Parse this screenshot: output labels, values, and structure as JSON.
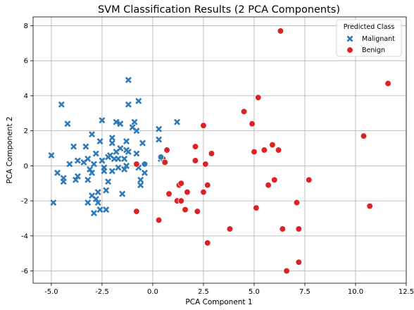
{
  "chart_data": {
    "type": "scatter",
    "title": "SVM Classification Results (2 PCA Components)",
    "xlabel": "PCA Component 1",
    "ylabel": "PCA Component 2",
    "xlim": [
      -5.9,
      12.5
    ],
    "ylim": [
      -6.7,
      8.5
    ],
    "xticks": [
      -5.0,
      -2.5,
      0.0,
      2.5,
      5.0,
      7.5,
      10.0,
      12.5
    ],
    "yticks": [
      -6,
      -4,
      -2,
      0,
      2,
      4,
      6,
      8
    ],
    "xtick_labels": [
      "-5.0",
      "-2.5",
      "0.0",
      "2.5",
      "5.0",
      "7.5",
      "10.0",
      "12.5"
    ],
    "ytick_labels": [
      "-6",
      "-4",
      "-2",
      "0",
      "2",
      "4",
      "6",
      "8"
    ],
    "grid": true,
    "legend": {
      "title": "Predicted Class",
      "placement": "top-right"
    },
    "series": [
      {
        "name": "Malignant",
        "marker": "x",
        "color": "#2f7ab8",
        "points": [
          [
            -5.0,
            0.6
          ],
          [
            -4.9,
            -2.1
          ],
          [
            -4.7,
            -0.4
          ],
          [
            -4.5,
            3.5
          ],
          [
            -4.4,
            -0.7
          ],
          [
            -4.4,
            -0.9
          ],
          [
            -4.2,
            2.4
          ],
          [
            -4.1,
            0.1
          ],
          [
            -3.9,
            1.1
          ],
          [
            -3.8,
            -0.8
          ],
          [
            -3.7,
            0.3
          ],
          [
            -3.7,
            -0.6
          ],
          [
            -3.4,
            0.2
          ],
          [
            -3.3,
            1.1
          ],
          [
            -3.2,
            0.4
          ],
          [
            -3.2,
            -0.8
          ],
          [
            -3.2,
            -2.1
          ],
          [
            -3.1,
            -0.2
          ],
          [
            -3.0,
            1.8
          ],
          [
            -3.0,
            -0.4
          ],
          [
            -3.0,
            -1.7
          ],
          [
            -2.9,
            -2.7
          ],
          [
            -2.9,
            0.1
          ],
          [
            -2.8,
            0.7
          ],
          [
            -2.8,
            -1.9
          ],
          [
            -2.7,
            -2.1
          ],
          [
            -2.7,
            -1.5
          ],
          [
            -2.6,
            1.4
          ],
          [
            -2.6,
            -2.5
          ],
          [
            -2.5,
            2.6
          ],
          [
            -2.5,
            0.3
          ],
          [
            -2.4,
            -0.1
          ],
          [
            -2.4,
            -0.3
          ],
          [
            -2.3,
            -1.4
          ],
          [
            -2.3,
            -2.5
          ],
          [
            -2.2,
            -0.9
          ],
          [
            -2.2,
            0.5
          ],
          [
            -2.1,
            0.6
          ],
          [
            -2.0,
            1.6
          ],
          [
            -2.0,
            1.3
          ],
          [
            -2.0,
            -0.3
          ],
          [
            -1.9,
            0.4
          ],
          [
            -1.8,
            2.5
          ],
          [
            -1.8,
            0.8
          ],
          [
            -1.7,
            0.4
          ],
          [
            -1.7,
            -0.1
          ],
          [
            -1.6,
            2.4
          ],
          [
            -1.6,
            1.0
          ],
          [
            -1.5,
            -1.6
          ],
          [
            -1.4,
            -0.2
          ],
          [
            -1.4,
            0.4
          ],
          [
            -1.3,
            1.4
          ],
          [
            -1.3,
            0.9
          ],
          [
            -1.3,
            0.0
          ],
          [
            -1.2,
            0.8
          ],
          [
            -1.2,
            3.5
          ],
          [
            -1.2,
            4.9
          ],
          [
            -1.0,
            2.2
          ],
          [
            -0.9,
            2.5
          ],
          [
            -0.8,
            2.0
          ],
          [
            -0.8,
            0.7
          ],
          [
            -0.7,
            3.7
          ],
          [
            -0.7,
            -0.1
          ],
          [
            -0.6,
            -1.1
          ],
          [
            -0.6,
            -0.8
          ],
          [
            -0.5,
            1.3
          ],
          [
            -0.4,
            -0.4
          ],
          [
            0.3,
            2.1
          ],
          [
            0.3,
            1.5
          ],
          [
            0.4,
            0.4
          ],
          [
            1.2,
            2.5
          ]
        ]
      },
      {
        "name": "Benign",
        "marker": "o",
        "color": "#dc2225",
        "points": [
          [
            -0.8,
            0.1
          ],
          [
            -0.8,
            -2.6
          ],
          [
            0.3,
            -3.1
          ],
          [
            0.5,
            0.4
          ],
          [
            0.6,
            0.2
          ],
          [
            0.7,
            0.9
          ],
          [
            0.8,
            -1.6
          ],
          [
            1.2,
            -2.0
          ],
          [
            1.3,
            -1.1
          ],
          [
            1.4,
            -1.0
          ],
          [
            1.4,
            -2.0
          ],
          [
            1.6,
            -2.5
          ],
          [
            1.7,
            -1.5
          ],
          [
            2.1,
            1.1
          ],
          [
            2.1,
            0.3
          ],
          [
            2.2,
            -2.6
          ],
          [
            2.5,
            -1.5
          ],
          [
            2.5,
            2.3
          ],
          [
            2.6,
            0.1
          ],
          [
            2.7,
            -4.4
          ],
          [
            2.7,
            -1.1
          ],
          [
            2.9,
            0.7
          ],
          [
            3.8,
            -3.6
          ],
          [
            4.5,
            3.1
          ],
          [
            4.9,
            2.4
          ],
          [
            5.0,
            0.8
          ],
          [
            5.1,
            -2.4
          ],
          [
            5.2,
            3.9
          ],
          [
            5.5,
            0.9
          ],
          [
            5.7,
            -1.1
          ],
          [
            5.9,
            1.2
          ],
          [
            6.0,
            -0.8
          ],
          [
            6.2,
            0.9
          ],
          [
            6.3,
            7.7
          ],
          [
            6.4,
            -3.6
          ],
          [
            6.6,
            -6.0
          ],
          [
            7.1,
            -2.1
          ],
          [
            7.2,
            -3.6
          ],
          [
            7.2,
            -5.5
          ],
          [
            7.7,
            -0.8
          ],
          [
            10.4,
            1.7
          ],
          [
            10.7,
            -2.3
          ],
          [
            11.6,
            4.7
          ]
        ]
      },
      {
        "name": "",
        "marker": "o",
        "color": "#2f7ab8",
        "points": [
          [
            0.4,
            0.5
          ],
          [
            -0.4,
            0.1
          ]
        ]
      }
    ]
  }
}
